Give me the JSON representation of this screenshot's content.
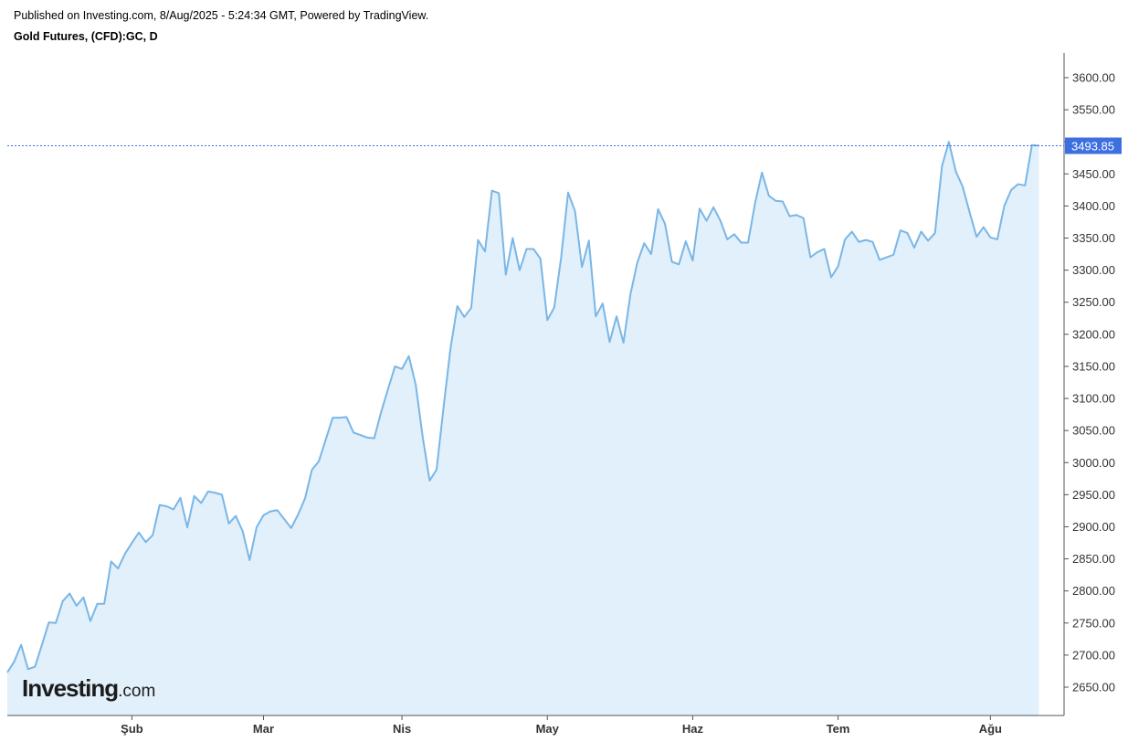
{
  "header": {
    "published": "Published on Investing.com, 8/Aug/2025 - 5:24:34 GMT, Powered by TradingView.",
    "symbol": "Gold Futures, (CFD):GC, D"
  },
  "logo": {
    "main": "Investing",
    "suffix": ".com"
  },
  "colors": {
    "line": "#7ab6e6",
    "fill": "#e1f0fa",
    "last_price": "#3d6fe0"
  },
  "chart_data": {
    "type": "area",
    "title": "Gold Futures, (CFD):GC, D",
    "xlabel": "",
    "ylabel": "",
    "ylim": [
      2610,
      3640
    ],
    "yticks": [
      "2650.00",
      "2700.00",
      "2750.00",
      "2800.00",
      "2850.00",
      "2900.00",
      "2950.00",
      "3000.00",
      "3050.00",
      "3100.00",
      "3150.00",
      "3200.00",
      "3250.00",
      "3300.00",
      "3350.00",
      "3400.00",
      "3450.00",
      "3500.00",
      "3550.00",
      "3600.00"
    ],
    "xticks": [
      {
        "label": "Şub",
        "index": 18
      },
      {
        "label": "Mar",
        "index": 37
      },
      {
        "label": "Nis",
        "index": 57
      },
      {
        "label": "May",
        "index": 78
      },
      {
        "label": "Haz",
        "index": 99
      },
      {
        "label": "Tem",
        "index": 120
      },
      {
        "label": "Ağu",
        "index": 142
      }
    ],
    "last_price": "3493.85",
    "last_value": 3493.85,
    "grid": false,
    "series": [
      {
        "values": [
          2673,
          2690,
          2716,
          2678,
          2682,
          2716,
          2751,
          2750,
          2784,
          2796,
          2777,
          2790,
          2753,
          2780,
          2780,
          2846,
          2835,
          2858,
          2875,
          2891,
          2876,
          2887,
          2934,
          2932,
          2927,
          2945,
          2899,
          2948,
          2937,
          2955,
          2953,
          2950,
          2905,
          2917,
          2893,
          2848,
          2899,
          2918,
          2924,
          2926,
          2912,
          2898,
          2919,
          2944,
          2989,
          3002,
          3036,
          3070,
          3070,
          3071,
          3047,
          3043,
          3039,
          3038,
          3079,
          3115,
          3150,
          3146,
          3166,
          3121,
          3040,
          2972,
          2989,
          3085,
          3177,
          3244,
          3227,
          3241,
          3347,
          3329,
          3424,
          3420,
          3293,
          3350,
          3300,
          3333,
          3333,
          3318,
          3222,
          3242,
          3320,
          3421,
          3392,
          3305,
          3346,
          3228,
          3248,
          3188,
          3228,
          3187,
          3262,
          3312,
          3342,
          3325,
          3395,
          3372,
          3313,
          3309,
          3345,
          3315,
          3396,
          3377,
          3398,
          3377,
          3348,
          3356,
          3343,
          3343,
          3404,
          3452,
          3416,
          3408,
          3407,
          3384,
          3386,
          3381,
          3320,
          3328,
          3333,
          3289,
          3306,
          3348,
          3360,
          3344,
          3347,
          3344,
          3316,
          3320,
          3324,
          3362,
          3358,
          3335,
          3360,
          3346,
          3358,
          3462,
          3500,
          3454,
          3430,
          3390,
          3352,
          3367,
          3351,
          3348,
          3400,
          3425,
          3434,
          3432,
          3495,
          3494
        ]
      }
    ]
  }
}
